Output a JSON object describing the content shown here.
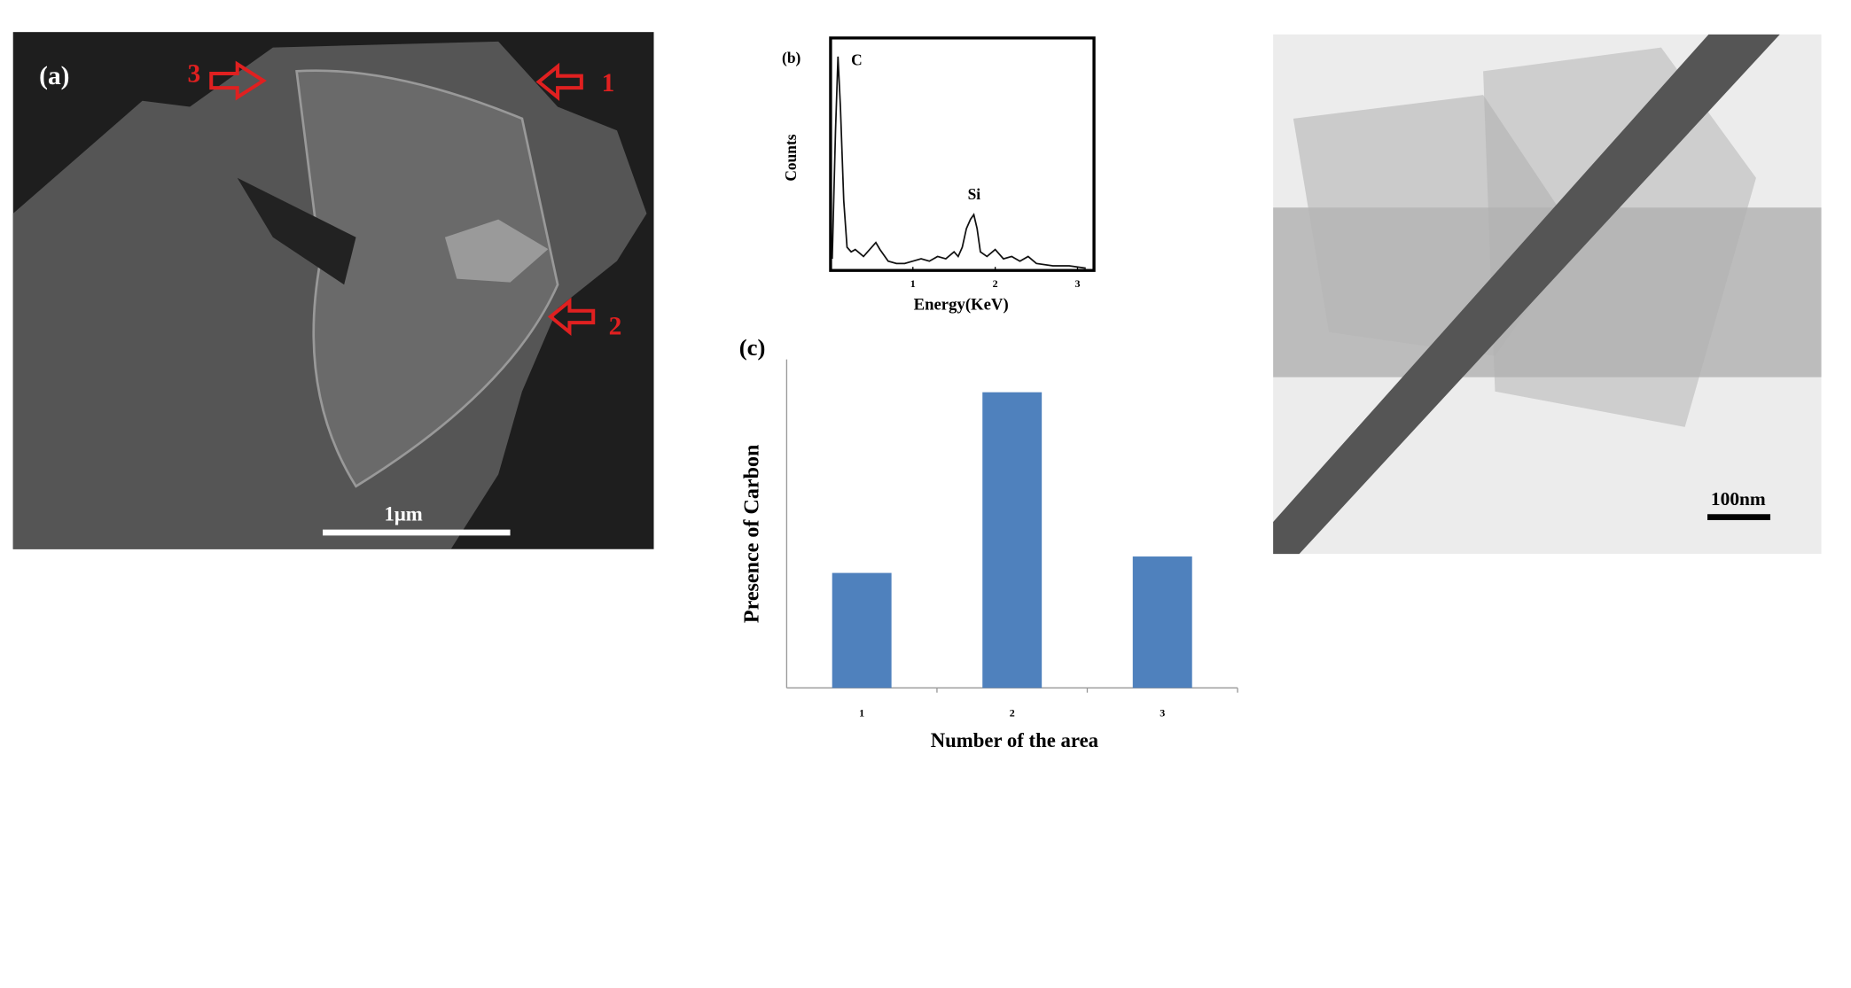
{
  "images": {
    "sem": {
      "panel_label": "(a)",
      "arrows": [
        "1",
        "2",
        "3"
      ],
      "scale_bar": "1μm"
    },
    "tem": {
      "scale_bar": "100nm"
    }
  },
  "chart_data": [
    {
      "type": "line",
      "panel_label": "(b)",
      "ylabel": "Counts",
      "xlabel": "Energy(KeV)",
      "annotations": [
        "C",
        "Si"
      ],
      "x": [
        0.02,
        0.06,
        0.09,
        0.12,
        0.16,
        0.2,
        0.25,
        0.3,
        0.4,
        0.5,
        0.55,
        0.6,
        0.7,
        0.8,
        0.9,
        1.0,
        1.1,
        1.2,
        1.3,
        1.4,
        1.5,
        1.55,
        1.6,
        1.65,
        1.7,
        1.74,
        1.78,
        1.82,
        1.9,
        2.0,
        2.1,
        2.2,
        2.3,
        2.4,
        2.5,
        2.7,
        2.9,
        3.1
      ],
      "values": [
        5,
        60,
        92,
        70,
        30,
        10,
        8,
        9,
        6,
        10,
        12,
        9,
        4,
        3,
        3,
        4,
        5,
        4,
        6,
        5,
        8,
        6,
        10,
        18,
        22,
        24,
        18,
        8,
        6,
        9,
        5,
        6,
        4,
        6,
        3,
        2,
        2,
        1
      ],
      "color": "#111111",
      "xlim": [
        0,
        3.2
      ],
      "xticks": [
        1,
        2,
        3
      ],
      "ylim": [
        0,
        100
      ]
    },
    {
      "type": "bar",
      "panel_label": "(c)",
      "ylabel": "Presence of Carbon",
      "xlabel": "Number of the area",
      "categories": [
        "1",
        "2",
        "3"
      ],
      "values": [
        35,
        90,
        40
      ],
      "color": "#4f81bd",
      "ylim": [
        0,
        100
      ]
    }
  ]
}
